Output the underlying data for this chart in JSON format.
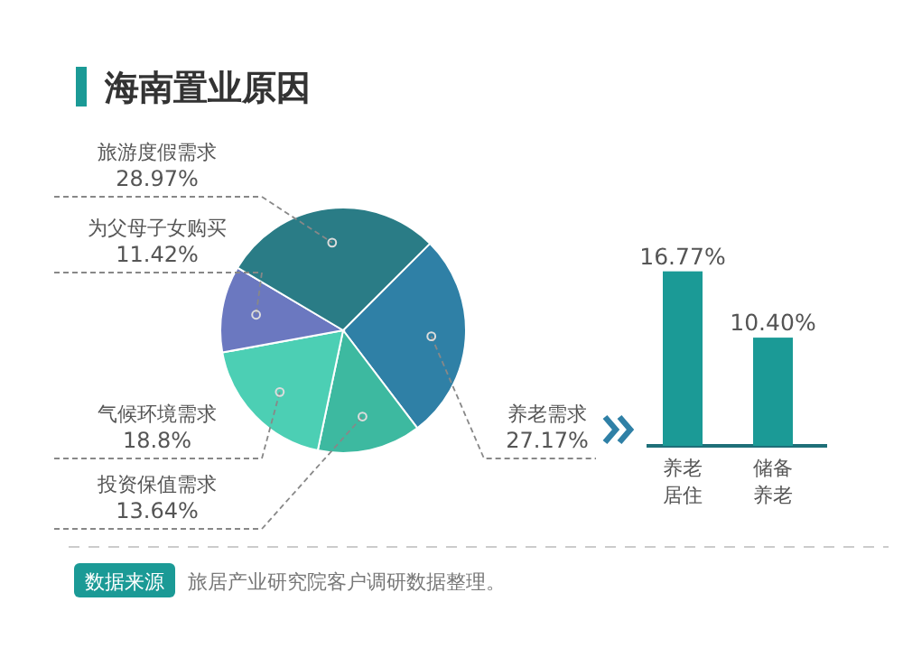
{
  "chart_data": [
    {
      "type": "pie",
      "title": "海南置业原因",
      "categories": [
        "养老需求",
        "投资保值需求",
        "气候环境需求",
        "为父母子女购买",
        "旅游度假需求"
      ],
      "values": [
        27.17,
        13.64,
        18.8,
        11.42,
        28.97
      ],
      "colors": [
        "#2f80a6",
        "#3db9a0",
        "#4ccfb4",
        "#6b78c0",
        "#2a7c86"
      ],
      "value_labels": [
        "27.17%",
        "13.64%",
        "18.8%",
        "11.42%",
        "28.97%"
      ],
      "annotations": [
        "数据来源",
        "旅居产业研究院客户调研数据整理。"
      ]
    },
    {
      "type": "bar",
      "categories": [
        "养老居住",
        "储备养老"
      ],
      "values": [
        16.77,
        10.4
      ],
      "color": "#1b9a96",
      "value_labels": [
        "16.77%",
        "10.40%"
      ]
    }
  ]
}
